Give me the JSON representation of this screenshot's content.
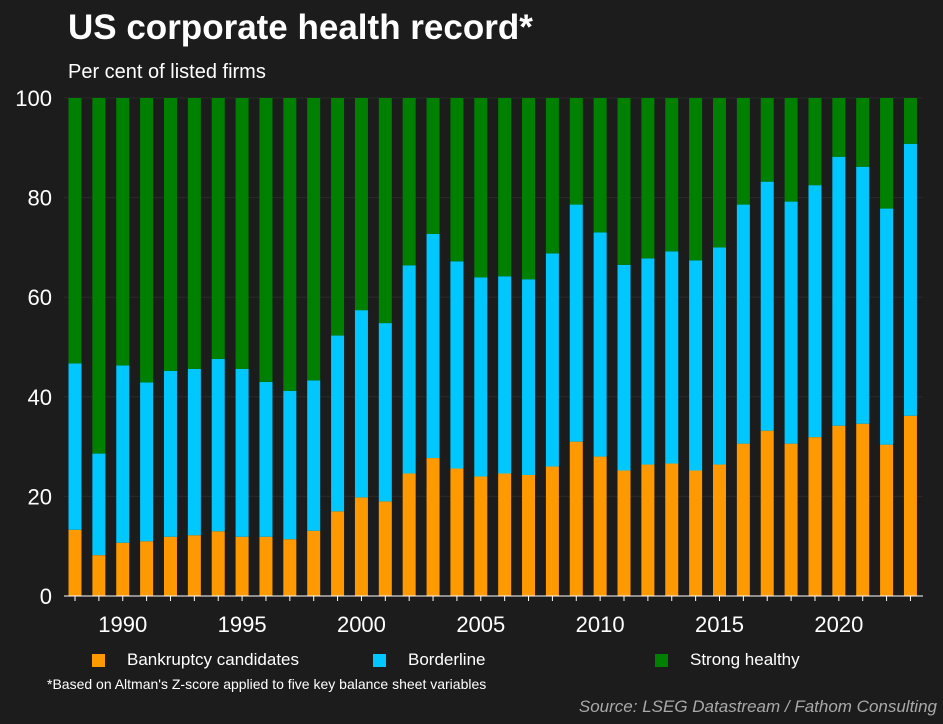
{
  "title": "US corporate health record*",
  "subtitle": "Per cent of listed firms",
  "footnote": "*Based on Altman's Z-score applied to five key balance sheet variables",
  "source": "Source: LSEG Datastream / Fathom Consulting",
  "colors": {
    "background": "#1c1c1c",
    "bankruptcy": "#ff9900",
    "borderline": "#00c8ff",
    "healthy": "#008000",
    "grid": "#2a2a2a",
    "source_text": "#a9a9a9"
  },
  "chart_data": {
    "type": "bar",
    "stacked": true,
    "title": "US corporate health record*",
    "subtitle": "Per cent of listed firms",
    "xlabel": "",
    "ylabel": "",
    "ylim": [
      0,
      100
    ],
    "yticks": [
      "0",
      "20",
      "40",
      "60",
      "80",
      "100"
    ],
    "xtick_labels": [
      "1990",
      "1995",
      "2000",
      "2005",
      "2010",
      "2015",
      "2020"
    ],
    "legend_position": "bottom",
    "grid": true,
    "categories": [
      1988,
      1989,
      1990,
      1991,
      1992,
      1993,
      1994,
      1995,
      1996,
      1997,
      1998,
      1999,
      2000,
      2001,
      2002,
      2003,
      2004,
      2005,
      2006,
      2007,
      2008,
      2009,
      2010,
      2011,
      2012,
      2013,
      2014,
      2015,
      2016,
      2017,
      2018,
      2019,
      2020,
      2021,
      2022,
      2023
    ],
    "series": [
      {
        "name": "Bankruptcy candidates",
        "color": "#ff9900",
        "values": [
          13.3,
          8.2,
          10.7,
          11.0,
          11.9,
          12.2,
          13.0,
          11.9,
          11.9,
          11.4,
          13.1,
          17.0,
          19.8,
          19.0,
          24.6,
          27.7,
          25.6,
          24.0,
          24.6,
          24.3,
          26.0,
          31.0,
          28.0,
          25.2,
          26.4,
          26.6,
          25.2,
          26.4,
          30.6,
          33.2,
          30.6,
          31.9,
          34.2,
          34.6,
          30.4,
          36.2
        ]
      },
      {
        "name": "Borderline",
        "color": "#00c8ff",
        "values": [
          33.4,
          20.4,
          35.6,
          31.9,
          33.3,
          33.4,
          34.6,
          33.7,
          31.1,
          29.8,
          30.2,
          35.3,
          37.6,
          35.8,
          41.8,
          45.0,
          41.6,
          40.0,
          39.6,
          39.3,
          42.8,
          47.6,
          45.0,
          41.3,
          41.4,
          42.6,
          42.2,
          43.6,
          48.0,
          50.0,
          48.6,
          50.6,
          54.0,
          51.6,
          47.4,
          54.6
        ]
      },
      {
        "name": "Strong healthy",
        "color": "#008000",
        "values": [
          53.3,
          71.4,
          53.7,
          57.1,
          54.8,
          54.4,
          52.4,
          54.4,
          57.0,
          58.8,
          56.7,
          47.7,
          42.6,
          45.2,
          33.6,
          27.3,
          32.8,
          36.0,
          35.8,
          36.4,
          31.2,
          21.4,
          27.0,
          33.5,
          32.2,
          30.8,
          32.6,
          30.0,
          21.4,
          16.8,
          20.8,
          17.5,
          11.8,
          13.8,
          22.2,
          9.2
        ]
      }
    ]
  }
}
